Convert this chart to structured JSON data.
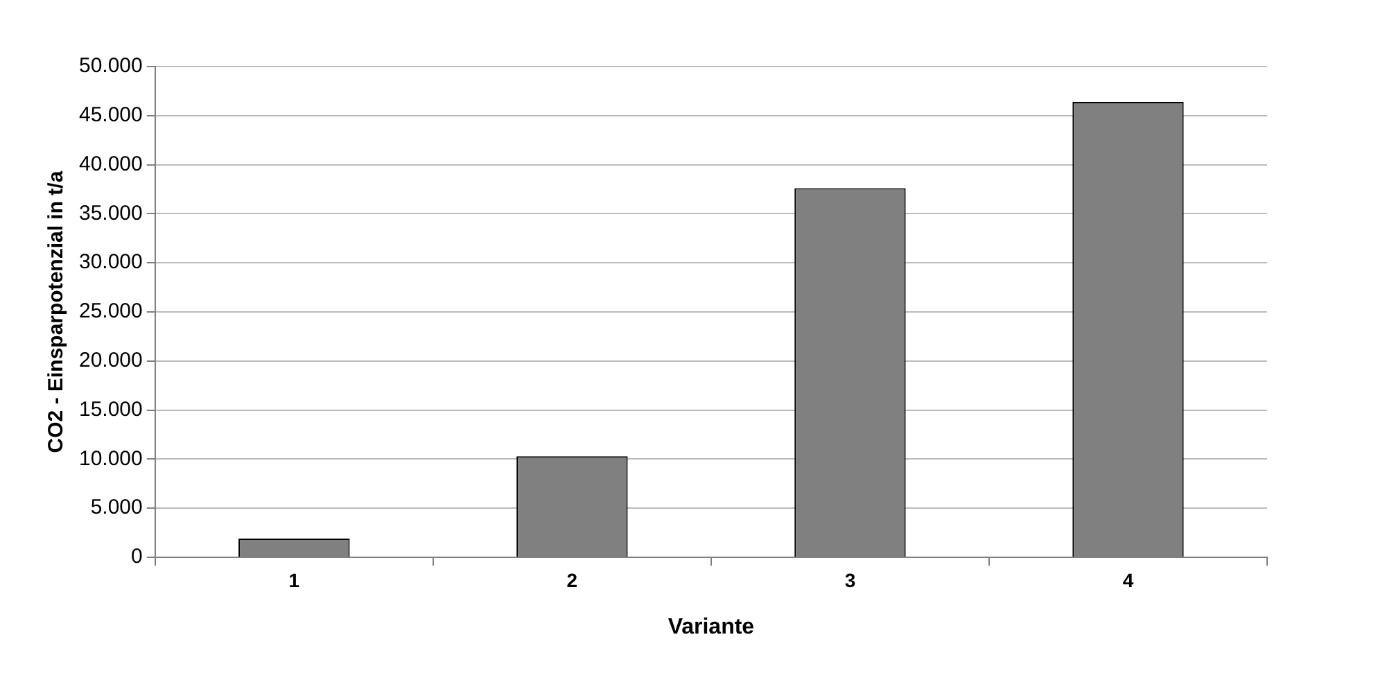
{
  "chart_data": {
    "type": "bar",
    "xlabel": "Variante",
    "ylabel": "CO2 - Einsparpotenzial in t/a",
    "categories": [
      "1",
      "2",
      "3",
      "4"
    ],
    "values": [
      1900,
      10300,
      37600,
      46400
    ],
    "color": "#808080",
    "ylim": [
      0,
      50000
    ],
    "yticks": [
      {
        "value": 0,
        "label": "0"
      },
      {
        "value": 5000,
        "label": "5.000"
      },
      {
        "value": 10000,
        "label": "10.000"
      },
      {
        "value": 15000,
        "label": "15.000"
      },
      {
        "value": 20000,
        "label": "20.000"
      },
      {
        "value": 25000,
        "label": "25.000"
      },
      {
        "value": 30000,
        "label": "30.000"
      },
      {
        "value": 35000,
        "label": "35.000"
      },
      {
        "value": 40000,
        "label": "40.000"
      },
      {
        "value": 45000,
        "label": "45.000"
      },
      {
        "value": 50000,
        "label": "50.000"
      }
    ],
    "grid": "y",
    "legend": false
  }
}
